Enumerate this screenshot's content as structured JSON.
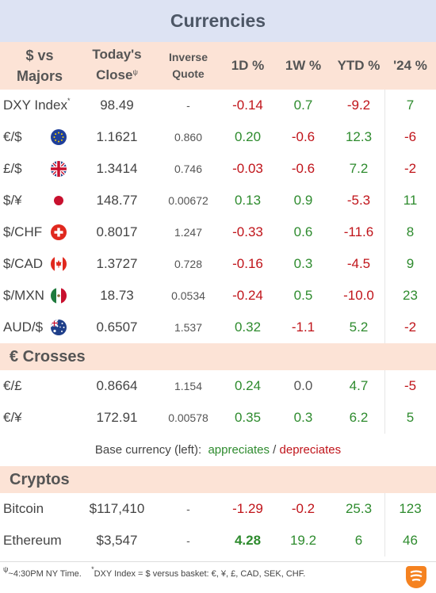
{
  "title": "Currencies",
  "headers": {
    "pair_a": "$ vs",
    "pair_b": "Majors",
    "close_a": "Today's",
    "close_b": "Close",
    "close_sup": "ψ",
    "inv_a": "Inverse",
    "inv_b": "Quote",
    "d1": "1D %",
    "w1": "1W %",
    "ytd": "YTD %",
    "y24": "'24 %"
  },
  "majors": [
    {
      "label": "DXY Index",
      "sup": "*",
      "flag": "",
      "close": "98.49",
      "inverse": "-",
      "d1": "-0.14",
      "w1": "0.7",
      "ytd": "-9.2",
      "y24": "7"
    },
    {
      "label": "€/$",
      "sup": "",
      "flag": "eu-flag-icon",
      "close": "1.1621",
      "inverse": "0.860",
      "d1": "0.20",
      "w1": "-0.6",
      "ytd": "12.3",
      "y24": "-6"
    },
    {
      "label": "£/$",
      "sup": "",
      "flag": "uk-flag-icon",
      "close": "1.3414",
      "inverse": "0.746",
      "d1": "-0.03",
      "w1": "-0.6",
      "ytd": "7.2",
      "y24": "-2"
    },
    {
      "label": "$/¥",
      "sup": "",
      "flag": "japan-flag-icon",
      "close": "148.77",
      "inverse": "0.00672",
      "d1": "0.13",
      "w1": "0.9",
      "ytd": "-5.3",
      "y24": "11"
    },
    {
      "label": "$/CHF",
      "sup": "",
      "flag": "switzerland-flag-icon",
      "close": "0.8017",
      "inverse": "1.247",
      "d1": "-0.33",
      "w1": "0.6",
      "ytd": "-11.6",
      "y24": "8"
    },
    {
      "label": "$/CAD",
      "sup": "",
      "flag": "canada-flag-icon",
      "close": "1.3727",
      "inverse": "0.728",
      "d1": "-0.16",
      "w1": "0.3",
      "ytd": "-4.5",
      "y24": "9"
    },
    {
      "label": "$/MXN",
      "sup": "",
      "flag": "mexico-flag-icon",
      "close": "18.73",
      "inverse": "0.0534",
      "d1": "-0.24",
      "w1": "0.5",
      "ytd": "-10.0",
      "y24": "23"
    },
    {
      "label": "AUD/$",
      "sup": "",
      "flag": "australia-flag-icon",
      "close": "0.6507",
      "inverse": "1.537",
      "d1": "0.32",
      "w1": "-1.1",
      "ytd": "5.2",
      "y24": "-2"
    }
  ],
  "crosses_title": "€ Crosses",
  "crosses": [
    {
      "label": "€/£",
      "close": "0.8664",
      "inverse": "1.154",
      "d1": "0.24",
      "w1": "0.0",
      "ytd": "4.7",
      "y24": "-5"
    },
    {
      "label": "€/¥",
      "close": "172.91",
      "inverse": "0.00578",
      "d1": "0.35",
      "w1": "0.3",
      "ytd": "6.2",
      "y24": "5"
    }
  ],
  "legend": {
    "prefix": "Base currency (left):  ",
    "up": "appreciates",
    "sep": " / ",
    "down": "depreciates"
  },
  "cryptos_title": "Cryptos",
  "cryptos": [
    {
      "label": "Bitcoin",
      "close": "$117,410",
      "inverse": "-",
      "d1": "-1.29",
      "w1": "-0.2",
      "ytd": "25.3",
      "y24": "123",
      "d1_bold": false
    },
    {
      "label": "Ethereum",
      "close": "$3,547",
      "inverse": "-",
      "d1": "4.28",
      "w1": "19.2",
      "ytd": "6",
      "y24": "46",
      "d1_bold": true
    }
  ],
  "footer": {
    "psi": "ψ",
    "psi_note": " ~4:30PM NY Time.",
    "star": "*",
    "star_note": "DXY Index = $ versus basket: €, ¥, £, CAD, SEK, CHF."
  },
  "colors": {
    "positive": "#2e8b2e",
    "negative": "#c0141a",
    "header_bg": "#fce3d6",
    "title_bg": "#dde3f3"
  },
  "chart_data": {
    "type": "table",
    "title": "Currencies",
    "columns": [
      "$ vs Majors",
      "Today's Close",
      "Inverse Quote",
      "1D %",
      "1W %",
      "YTD %",
      "'24 %"
    ],
    "sections": [
      {
        "name": "$ vs Majors",
        "rows": [
          [
            "DXY Index",
            98.49,
            null,
            -0.14,
            0.7,
            -9.2,
            7
          ],
          [
            "€/$",
            1.1621,
            0.86,
            0.2,
            -0.6,
            12.3,
            -6
          ],
          [
            "£/$",
            1.3414,
            0.746,
            -0.03,
            -0.6,
            7.2,
            -2
          ],
          [
            "$/¥",
            148.77,
            0.00672,
            0.13,
            0.9,
            -5.3,
            11
          ],
          [
            "$/CHF",
            0.8017,
            1.247,
            -0.33,
            0.6,
            -11.6,
            8
          ],
          [
            "$/CAD",
            1.3727,
            0.728,
            -0.16,
            0.3,
            -4.5,
            9
          ],
          [
            "$/MXN",
            18.73,
            0.0534,
            -0.24,
            0.5,
            -10.0,
            23
          ],
          [
            "AUD/$",
            0.6507,
            1.537,
            0.32,
            -1.1,
            5.2,
            -2
          ]
        ]
      },
      {
        "name": "€ Crosses",
        "rows": [
          [
            "€/£",
            0.8664,
            1.154,
            0.24,
            0.0,
            4.7,
            -5
          ],
          [
            "€/¥",
            172.91,
            0.00578,
            0.35,
            0.3,
            6.2,
            5
          ]
        ]
      },
      {
        "name": "Cryptos",
        "rows": [
          [
            "Bitcoin",
            117410,
            null,
            -1.29,
            -0.2,
            25.3,
            123
          ],
          [
            "Ethereum",
            3547,
            null,
            4.28,
            19.2,
            6,
            46
          ]
        ]
      }
    ]
  }
}
